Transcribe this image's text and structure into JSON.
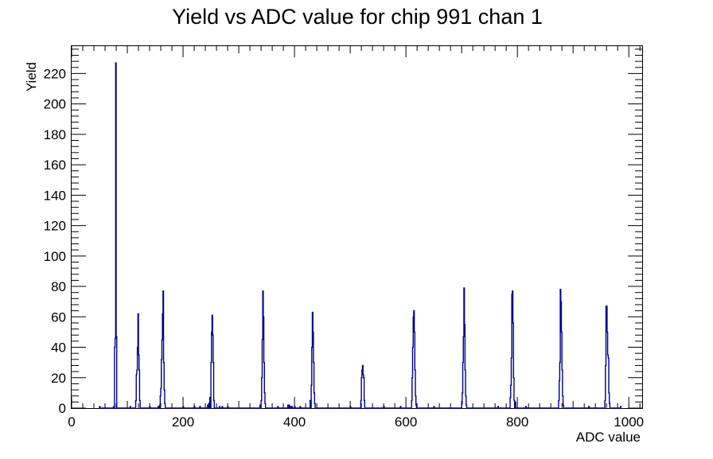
{
  "chart_data": {
    "type": "bar",
    "title": "Yield vs ADC value for chip 991 chan 1",
    "xlabel": "ADC value",
    "ylabel": "Yield",
    "xlim": [
      0,
      1024
    ],
    "ylim": [
      0,
      238
    ],
    "bin_width": 1,
    "xticks": [
      0,
      200,
      400,
      600,
      800,
      1000
    ],
    "yticks": [
      0,
      20,
      40,
      60,
      80,
      100,
      120,
      140,
      160,
      180,
      200,
      220
    ],
    "grid": false,
    "line_color": "#00008b",
    "bins": [
      [
        50,
        1
      ],
      [
        75,
        1
      ],
      [
        77,
        40
      ],
      [
        78,
        46
      ],
      [
        79,
        227
      ],
      [
        80,
        47
      ],
      [
        105,
        1
      ],
      [
        115,
        5
      ],
      [
        116,
        22
      ],
      [
        117,
        25
      ],
      [
        118,
        40
      ],
      [
        119,
        62
      ],
      [
        120,
        35
      ],
      [
        121,
        25
      ],
      [
        122,
        5
      ],
      [
        140,
        1
      ],
      [
        155,
        1
      ],
      [
        158,
        2
      ],
      [
        159,
        8
      ],
      [
        160,
        13
      ],
      [
        161,
        32
      ],
      [
        162,
        45
      ],
      [
        163,
        62
      ],
      [
        164,
        77
      ],
      [
        165,
        30
      ],
      [
        166,
        12
      ],
      [
        167,
        3
      ],
      [
        200,
        1
      ],
      [
        220,
        1
      ],
      [
        230,
        1
      ],
      [
        244,
        2
      ],
      [
        246,
        3
      ],
      [
        248,
        7
      ],
      [
        250,
        30
      ],
      [
        251,
        50
      ],
      [
        252,
        61
      ],
      [
        253,
        48
      ],
      [
        254,
        30
      ],
      [
        255,
        5
      ],
      [
        265,
        1
      ],
      [
        270,
        1
      ],
      [
        280,
        1
      ],
      [
        338,
        2
      ],
      [
        340,
        5
      ],
      [
        341,
        20
      ],
      [
        342,
        45
      ],
      [
        343,
        77
      ],
      [
        344,
        60
      ],
      [
        345,
        30
      ],
      [
        346,
        10
      ],
      [
        347,
        3
      ],
      [
        370,
        1
      ],
      [
        388,
        2
      ],
      [
        390,
        2
      ],
      [
        392,
        1
      ],
      [
        395,
        1
      ],
      [
        400,
        1
      ],
      [
        410,
        1
      ],
      [
        428,
        5
      ],
      [
        430,
        15
      ],
      [
        431,
        40
      ],
      [
        432,
        63
      ],
      [
        433,
        50
      ],
      [
        434,
        30
      ],
      [
        435,
        10
      ],
      [
        436,
        3
      ],
      [
        500,
        1
      ],
      [
        519,
        5
      ],
      [
        520,
        20
      ],
      [
        521,
        25
      ],
      [
        522,
        28
      ],
      [
        523,
        22
      ],
      [
        524,
        20
      ],
      [
        525,
        5
      ],
      [
        560,
        1
      ],
      [
        590,
        1
      ],
      [
        610,
        5
      ],
      [
        611,
        20
      ],
      [
        612,
        40
      ],
      [
        613,
        60
      ],
      [
        614,
        64
      ],
      [
        615,
        50
      ],
      [
        616,
        25
      ],
      [
        617,
        8
      ],
      [
        618,
        2
      ],
      [
        650,
        1
      ],
      [
        700,
        3
      ],
      [
        701,
        10
      ],
      [
        702,
        30
      ],
      [
        703,
        47
      ],
      [
        704,
        79
      ],
      [
        705,
        55
      ],
      [
        706,
        25
      ],
      [
        707,
        8
      ],
      [
        708,
        2
      ],
      [
        765,
        1
      ],
      [
        787,
        7
      ],
      [
        788,
        15
      ],
      [
        789,
        33
      ],
      [
        790,
        75
      ],
      [
        791,
        77
      ],
      [
        792,
        56
      ],
      [
        793,
        20
      ],
      [
        794,
        5
      ],
      [
        796,
        4
      ],
      [
        815,
        1
      ],
      [
        874,
        5
      ],
      [
        875,
        18
      ],
      [
        876,
        30
      ],
      [
        877,
        78
      ],
      [
        878,
        70
      ],
      [
        879,
        50
      ],
      [
        880,
        25
      ],
      [
        881,
        8
      ],
      [
        882,
        2
      ],
      [
        928,
        1
      ],
      [
        957,
        5
      ],
      [
        958,
        28
      ],
      [
        959,
        67
      ],
      [
        960,
        67
      ],
      [
        961,
        50
      ],
      [
        962,
        35
      ],
      [
        963,
        33
      ],
      [
        964,
        10
      ],
      [
        965,
        3
      ],
      [
        985,
        1
      ]
    ]
  }
}
